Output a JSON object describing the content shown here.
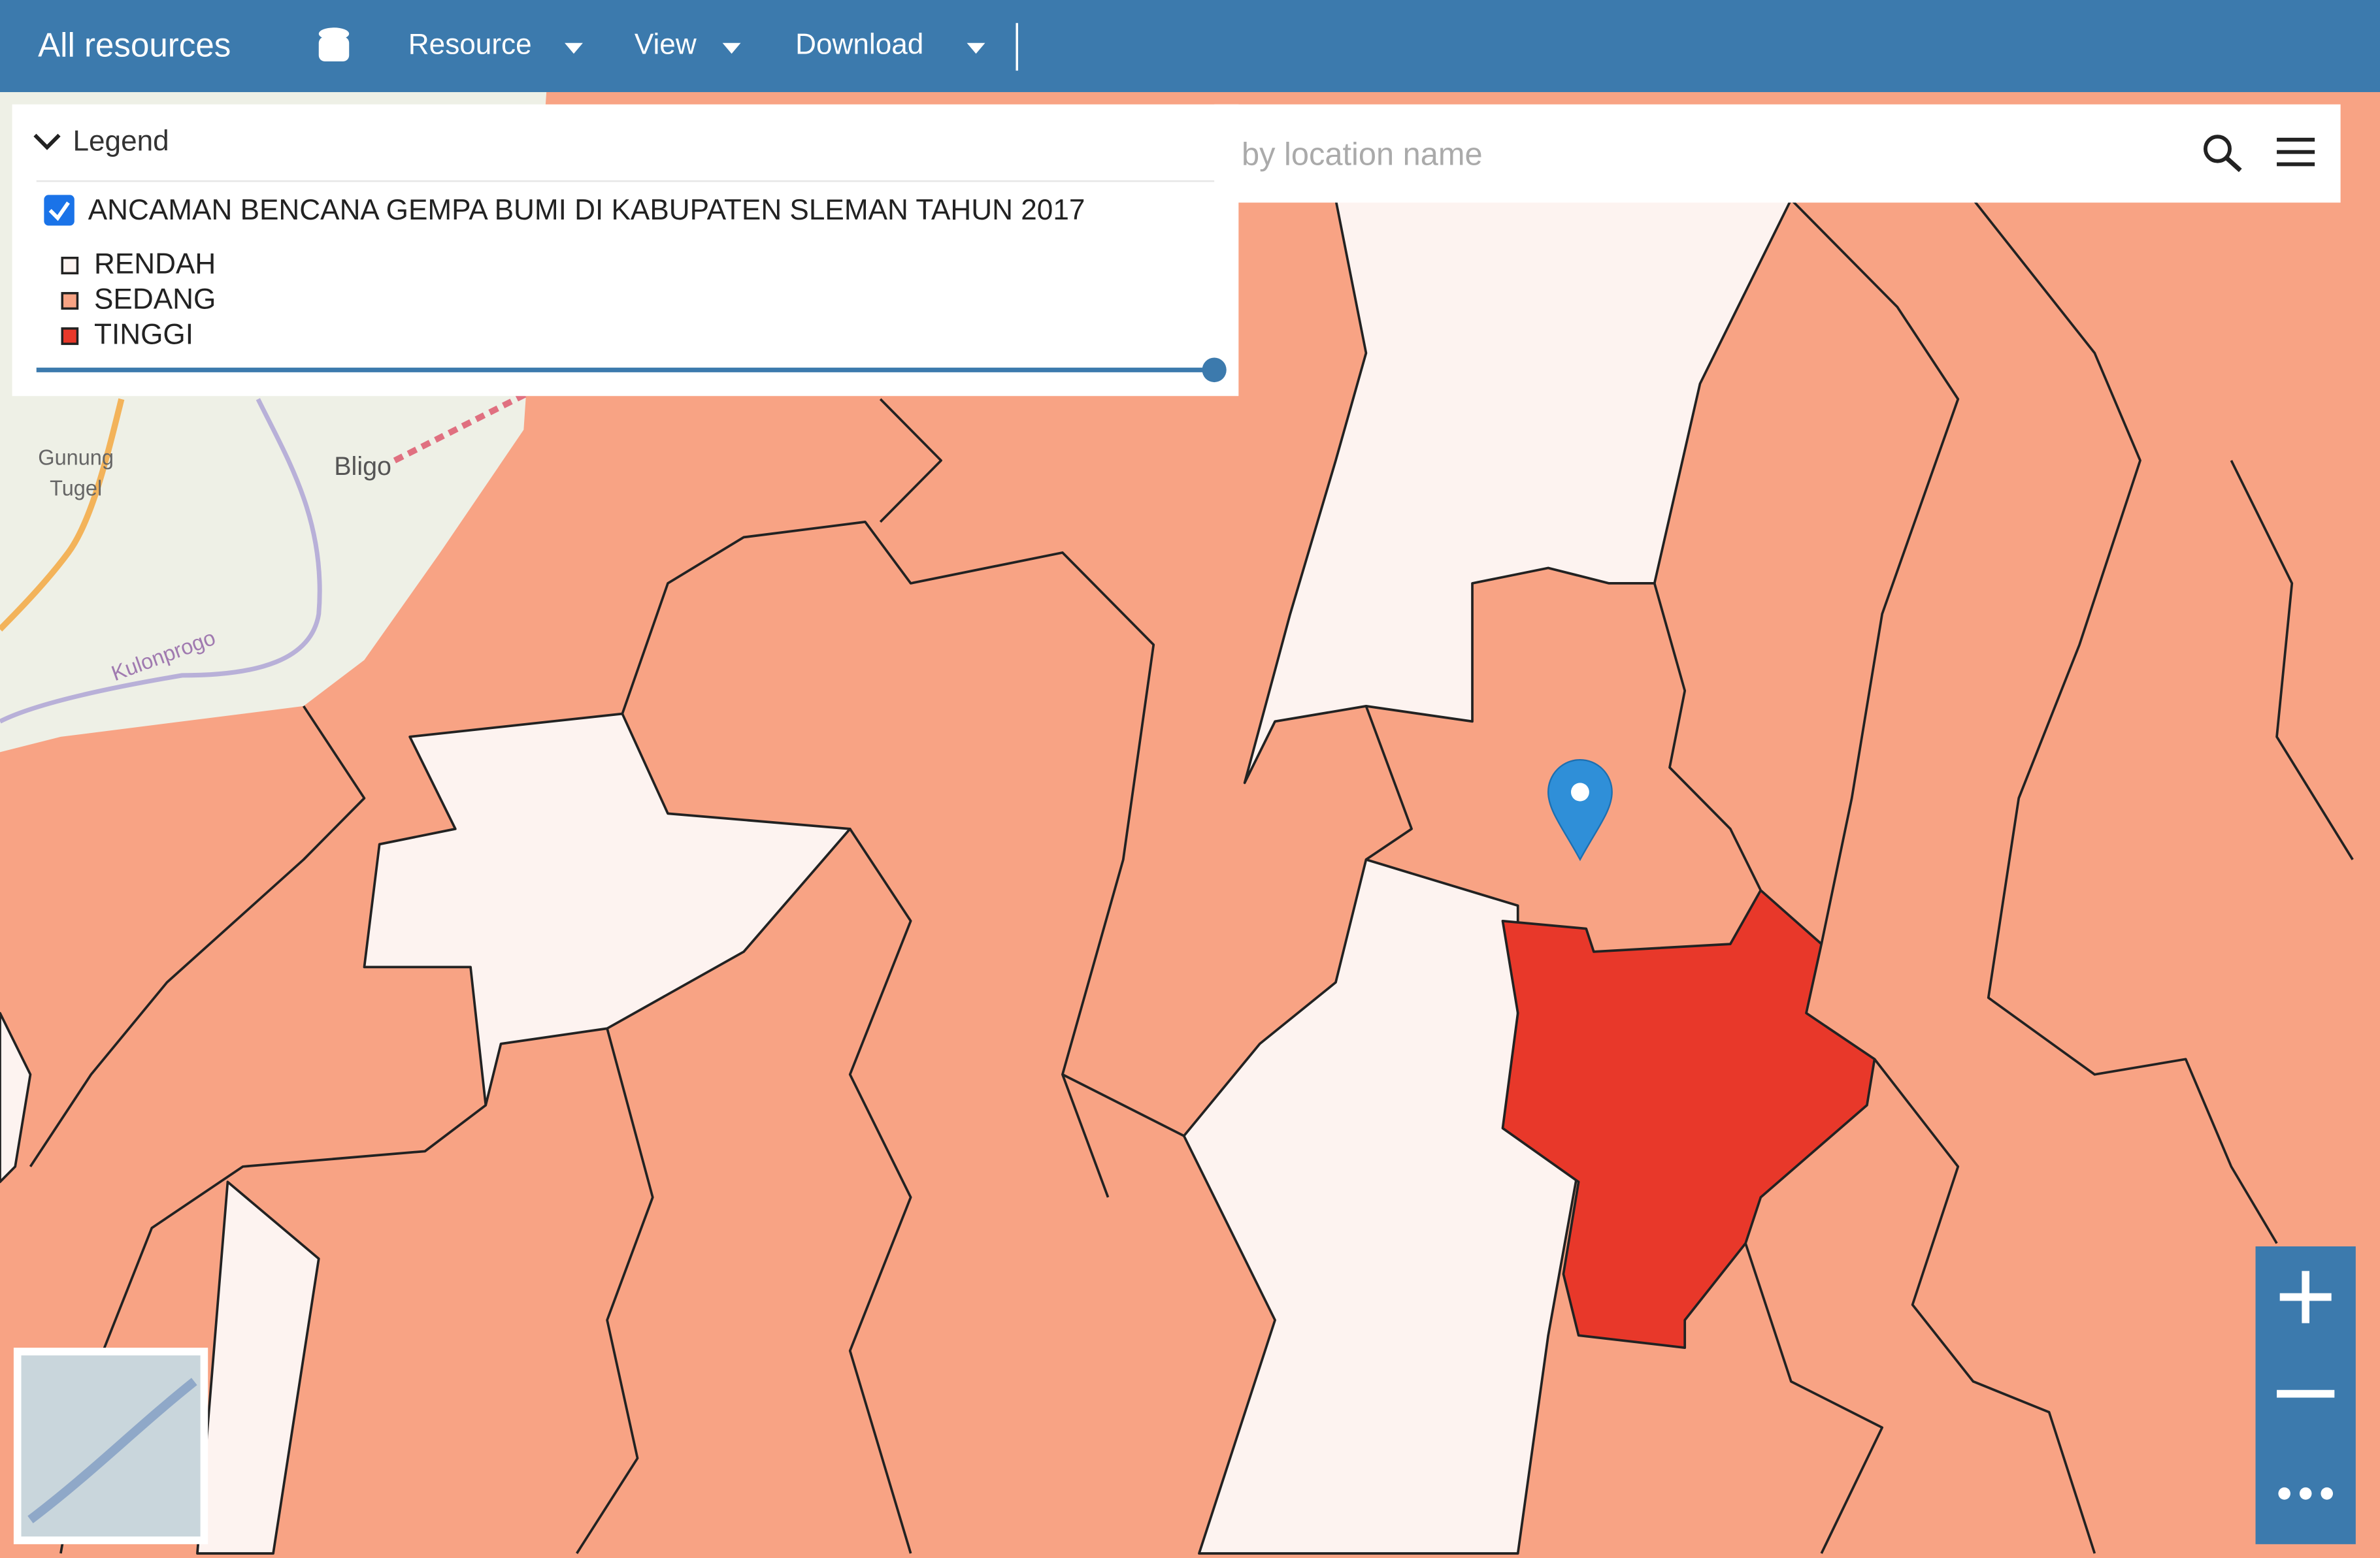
{
  "toolbar": {
    "title": "All resources",
    "menus": [
      "Resource",
      "View",
      "Download"
    ]
  },
  "search": {
    "placeholder": "by location name"
  },
  "legend": {
    "title": "Legend",
    "layer": "ANCAMAN BENCANA GEMPA BUMI DI KABUPATEN SLEMAN TAHUN 2017",
    "classes": [
      {
        "label": "RENDAH",
        "color": "#fdf3f0"
      },
      {
        "label": "SEDANG",
        "color": "#f8a384"
      },
      {
        "label": "TINGGI",
        "color": "#e8382a"
      }
    ]
  },
  "map_labels": [
    "Gunung",
    "Tugel",
    "Bligo",
    "Kulonprogo"
  ]
}
